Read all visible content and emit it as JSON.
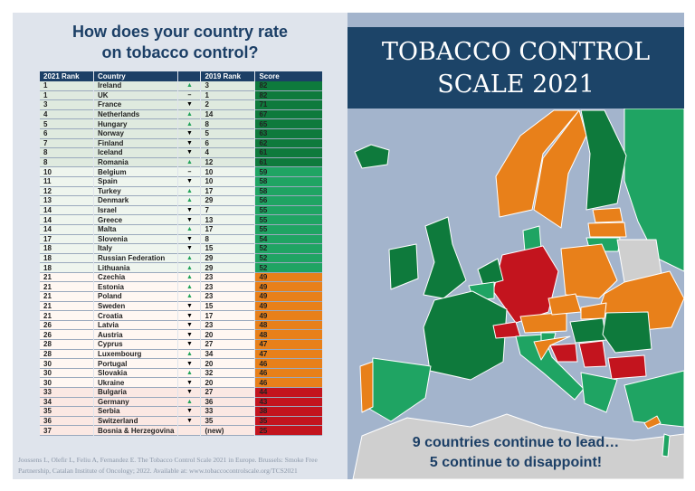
{
  "left": {
    "title_line1": "How does your country rate",
    "title_line2": "on tobacco control?",
    "headers": {
      "rank2021": "2021 Rank",
      "country": "Country",
      "change": "",
      "rank2019": "2019 Rank",
      "score": "Score"
    },
    "rows": [
      {
        "rank": "1",
        "country": "Ireland",
        "change": "up",
        "rank2019": "3",
        "score": "82"
      },
      {
        "rank": "1",
        "country": "UK",
        "change": "same",
        "rank2019": "1",
        "score": "82"
      },
      {
        "rank": "3",
        "country": "France",
        "change": "down",
        "rank2019": "2",
        "score": "71"
      },
      {
        "rank": "4",
        "country": "Netherlands",
        "change": "up",
        "rank2019": "14",
        "score": "67"
      },
      {
        "rank": "5",
        "country": "Hungary",
        "change": "up",
        "rank2019": "8",
        "score": "65"
      },
      {
        "rank": "6",
        "country": "Norway",
        "change": "down",
        "rank2019": "5",
        "score": "63"
      },
      {
        "rank": "7",
        "country": "Finland",
        "change": "down",
        "rank2019": "6",
        "score": "62"
      },
      {
        "rank": "8",
        "country": "Iceland",
        "change": "down",
        "rank2019": "4",
        "score": "61"
      },
      {
        "rank": "8",
        "country": "Romania",
        "change": "up",
        "rank2019": "12",
        "score": "61"
      },
      {
        "rank": "10",
        "country": "Belgium",
        "change": "same",
        "rank2019": "10",
        "score": "59"
      },
      {
        "rank": "11",
        "country": "Spain",
        "change": "down",
        "rank2019": "10",
        "score": "58"
      },
      {
        "rank": "12",
        "country": "Turkey",
        "change": "up",
        "rank2019": "17",
        "score": "58"
      },
      {
        "rank": "13",
        "country": "Denmark",
        "change": "up",
        "rank2019": "29",
        "score": "56"
      },
      {
        "rank": "14",
        "country": "Israel",
        "change": "down",
        "rank2019": "7",
        "score": "55"
      },
      {
        "rank": "14",
        "country": "Greece",
        "change": "down",
        "rank2019": "13",
        "score": "55"
      },
      {
        "rank": "14",
        "country": "Malta",
        "change": "up",
        "rank2019": "17",
        "score": "55"
      },
      {
        "rank": "17",
        "country": "Slovenia",
        "change": "down",
        "rank2019": "8",
        "score": "54"
      },
      {
        "rank": "18",
        "country": "Italy",
        "change": "down",
        "rank2019": "15",
        "score": "52"
      },
      {
        "rank": "18",
        "country": "Russian Federation",
        "change": "up",
        "rank2019": "29",
        "score": "52"
      },
      {
        "rank": "18",
        "country": "Lithuania",
        "change": "up",
        "rank2019": "29",
        "score": "52"
      },
      {
        "rank": "21",
        "country": "Czechia",
        "change": "up",
        "rank2019": "23",
        "score": "49"
      },
      {
        "rank": "21",
        "country": "Estonia",
        "change": "up",
        "rank2019": "23",
        "score": "49"
      },
      {
        "rank": "21",
        "country": "Poland",
        "change": "up",
        "rank2019": "23",
        "score": "49"
      },
      {
        "rank": "21",
        "country": "Sweden",
        "change": "down",
        "rank2019": "15",
        "score": "49"
      },
      {
        "rank": "21",
        "country": "Croatia",
        "change": "down",
        "rank2019": "17",
        "score": "49"
      },
      {
        "rank": "26",
        "country": "Latvia",
        "change": "down",
        "rank2019": "23",
        "score": "48"
      },
      {
        "rank": "26",
        "country": "Austria",
        "change": "down",
        "rank2019": "20",
        "score": "48"
      },
      {
        "rank": "28",
        "country": "Cyprus",
        "change": "down",
        "rank2019": "27",
        "score": "47"
      },
      {
        "rank": "28",
        "country": "Luxembourg",
        "change": "up",
        "rank2019": "34",
        "score": "47"
      },
      {
        "rank": "30",
        "country": "Portugal",
        "change": "down",
        "rank2019": "20",
        "score": "46"
      },
      {
        "rank": "30",
        "country": "Slovakia",
        "change": "up",
        "rank2019": "32",
        "score": "46"
      },
      {
        "rank": "30",
        "country": "Ukraine",
        "change": "down",
        "rank2019": "20",
        "score": "46"
      },
      {
        "rank": "33",
        "country": "Bulgaria",
        "change": "down",
        "rank2019": "27",
        "score": "44"
      },
      {
        "rank": "34",
        "country": "Germany",
        "change": "up",
        "rank2019": "36",
        "score": "43"
      },
      {
        "rank": "35",
        "country": "Serbia",
        "change": "down",
        "rank2019": "33",
        "score": "38"
      },
      {
        "rank": "36",
        "country": "Switzerland",
        "change": "down",
        "rank2019": "35",
        "score": "35"
      },
      {
        "rank": "37",
        "country": "Bosnia & Herzegovina",
        "change": "none",
        "rank2019": "(new)",
        "score": "25"
      }
    ],
    "citation": "Joossens L, Olefir L, Feliu A, Fernandez E. The Tobacco Control Scale 2021 in Europe. Brussels: Smoke Free Partnership, Catalan Institute of Oncology; 2022. Available at: www.tobaccocontrolscale.org/TCS2021"
  },
  "right": {
    "title_line1": "TOBACCO CONTROL",
    "title_line2": "SCALE 2021",
    "tagline1": "9 countries continue to lead…",
    "tagline2": "5 continue to disappoint!"
  },
  "colors": {
    "navy": "#1c3f66",
    "dark_green": "#0e7a3c",
    "green": "#1fa463",
    "orange": "#e8801a",
    "red": "#c3141e",
    "grey": "#cfcfcf",
    "sea": "#a3b4cc"
  },
  "symbols": {
    "up": "▲",
    "down": "▼",
    "same": "–",
    "none": ""
  }
}
